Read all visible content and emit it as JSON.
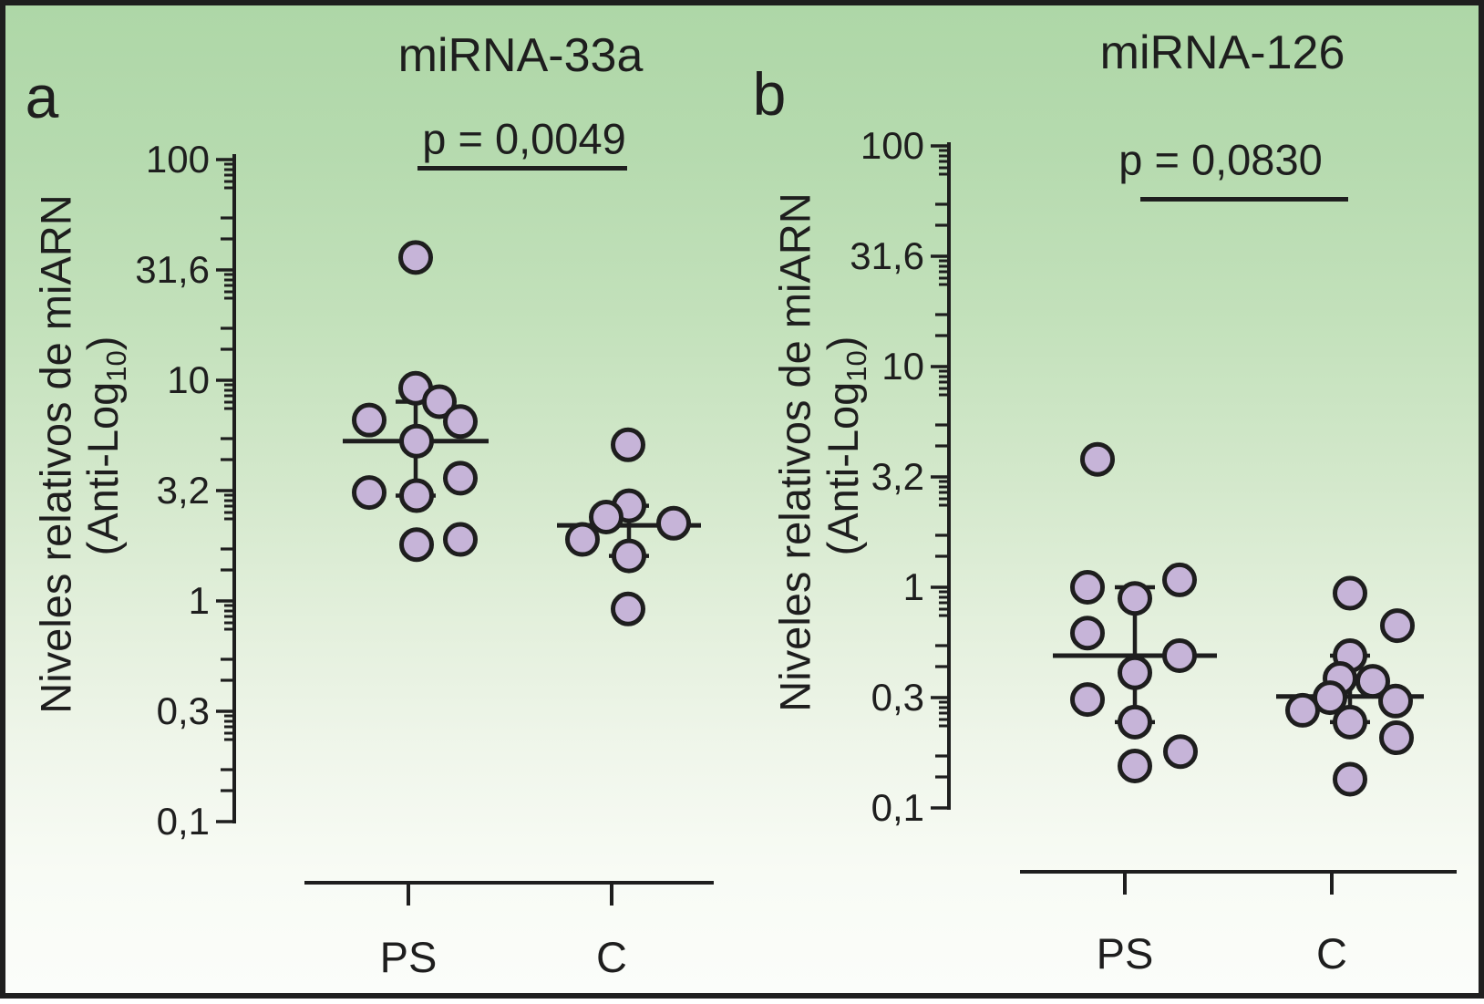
{
  "figure": {
    "background_top_color": "#aed7a7",
    "background_bottom_color": "#fbfdfa",
    "border_color": "#1f1f1f",
    "dot_fill_color": "#c6b4d8",
    "dot_stroke_color": "#1e1e1e",
    "line_color": "#1e1e1e"
  },
  "chart_data": [
    {
      "type": "scatter",
      "panel_letter": "a",
      "title": "miRNA-33a",
      "p_value_label": "p = 0,0049",
      "ylabel_line1": "Niveles relativos de miARN",
      "ylabel_line2_prefix": "(Anti-Log",
      "ylabel_line2_sub": "10",
      "ylabel_line2_suffix": ")",
      "yaxis": {
        "scale": "log",
        "range": [
          0.1,
          100
        ],
        "tick_values": [
          100,
          31.62,
          10,
          3.162,
          1,
          0.3162,
          0.1
        ],
        "tick_labels": [
          "100",
          "31,6",
          "10",
          "3,2",
          "1",
          "0,3",
          "0,1"
        ]
      },
      "categories": [
        "PS",
        "C"
      ],
      "groups": [
        {
          "label": "PS",
          "values": [
            36,
            9.2,
            8.0,
            6.6,
            6.5,
            5.3,
            3.6,
            3.1,
            3.0,
            1.9,
            1.8
          ],
          "median": 5.3,
          "whisker_high": 8.0,
          "whisker_low": 3.0
        },
        {
          "label": "C",
          "values": [
            5.1,
            2.7,
            2.4,
            2.25,
            1.9,
            1.6,
            0.92
          ],
          "median": 2.2,
          "whisker_high": 2.7,
          "whisker_low": 1.6
        }
      ]
    },
    {
      "type": "scatter",
      "panel_letter": "b",
      "title": "miRNA-126",
      "p_value_label": "p = 0,0830",
      "ylabel_line1": "Niveles relativos de miARN",
      "ylabel_line2_prefix": "(Anti-Log",
      "ylabel_line2_sub": "10",
      "ylabel_line2_suffix": ")",
      "yaxis": {
        "scale": "log",
        "range": [
          0.1,
          100
        ],
        "tick_values": [
          100,
          31.62,
          10,
          3.162,
          1,
          0.3162,
          0.1
        ],
        "tick_labels": [
          "100",
          "31,6",
          "10",
          "3,2",
          "1",
          "0,3",
          "0,1"
        ]
      },
      "categories": [
        "PS",
        "C"
      ],
      "groups": [
        {
          "label": "PS",
          "values": [
            3.8,
            1.08,
            1.0,
            0.89,
            0.62,
            0.49,
            0.41,
            0.31,
            0.245,
            0.18,
            0.155
          ],
          "median": 0.49,
          "whisker_high": 1.0,
          "whisker_low": 0.245
        },
        {
          "label": "C",
          "values": [
            0.94,
            0.67,
            0.49,
            0.386,
            0.375,
            0.316,
            0.305,
            0.277,
            0.245,
            0.208,
            0.135
          ],
          "median": 0.32,
          "whisker_high": 0.49,
          "whisker_low": 0.245
        }
      ]
    }
  ]
}
